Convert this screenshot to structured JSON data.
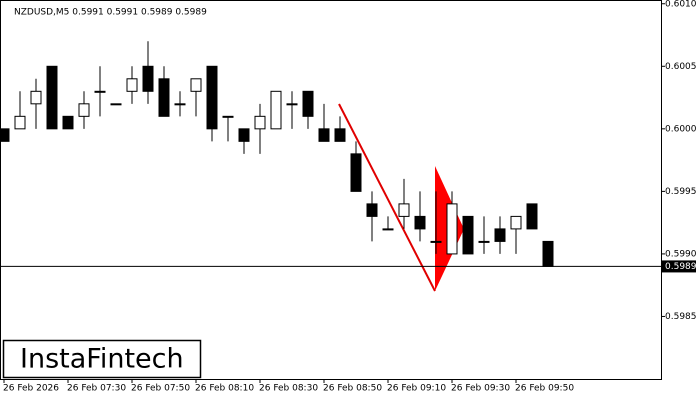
{
  "chart_data": {
    "type": "candlestick",
    "title": "NZDUSD,M5  0.5991 0.5991 0.5989 0.5989",
    "logo": "InstaFintech",
    "categories": [
      "26 Feb 2026",
      null,
      null,
      null,
      "26 Feb 07:30",
      null,
      null,
      null,
      "26 Feb 07:50",
      null,
      null,
      null,
      "26 Feb 08:10",
      null,
      null,
      null,
      "26 Feb 08:30",
      null,
      null,
      null,
      "26 Feb 08:50",
      null,
      null,
      null,
      "26 Feb 09:10",
      null,
      null,
      null,
      "26 Feb 09:30",
      null,
      null,
      null,
      "26 Feb 09:50",
      null,
      null
    ],
    "open": [
      0.6,
      0.6,
      0.6002,
      0.6005,
      0.6001,
      0.6001,
      0.6003,
      0.6002,
      0.6003,
      0.6005,
      0.6004,
      0.6002,
      0.6003,
      0.6005,
      0.6001,
      0.6,
      0.6,
      0.6,
      0.6002,
      0.6003,
      0.6,
      0.6,
      0.5998,
      0.5994,
      0.5992,
      0.5993,
      0.5993,
      0.5991,
      0.599,
      0.5993,
      0.5991,
      0.5992,
      0.5992,
      0.5994,
      0.5991
    ],
    "high": [
      0.6,
      0.6003,
      0.6004,
      0.6005,
      0.6001,
      0.6003,
      0.6005,
      0.6002,
      0.6005,
      0.6007,
      0.6005,
      0.6003,
      0.6004,
      0.6005,
      0.6001,
      0.6,
      0.6002,
      0.6003,
      0.6003,
      0.6003,
      0.6002,
      0.6001,
      0.5999,
      0.5995,
      0.5993,
      0.5996,
      0.5995,
      0.5995,
      0.5995,
      0.5993,
      0.5993,
      0.5993,
      0.5993,
      0.5994,
      0.5991
    ],
    "low": [
      0.5999,
      0.6,
      0.6,
      0.6,
      0.6,
      0.6,
      0.6001,
      0.6002,
      0.6002,
      0.6002,
      0.6001,
      0.6001,
      0.6001,
      0.5999,
      0.5999,
      0.5998,
      0.5998,
      0.6,
      0.6,
      0.6,
      0.5999,
      0.5999,
      0.5995,
      0.5991,
      0.5992,
      0.5992,
      0.5991,
      0.599,
      0.599,
      0.599,
      0.599,
      0.599,
      0.599,
      0.5992,
      0.5989
    ],
    "close": [
      0.5999,
      0.6001,
      0.6003,
      0.6,
      0.6,
      0.6002,
      0.6003,
      0.6002,
      0.6004,
      0.6003,
      0.6001,
      0.6002,
      0.6004,
      0.6,
      0.6001,
      0.5999,
      0.6001,
      0.6003,
      0.6002,
      0.6001,
      0.5999,
      0.5999,
      0.5995,
      0.5993,
      0.5992,
      0.5994,
      0.5992,
      0.5991,
      0.5994,
      0.599,
      0.5991,
      0.5991,
      0.5993,
      0.5992,
      0.5989
    ],
    "last_price": 0.5989,
    "ylim": [
      0.598,
      0.60103
    ],
    "yticks": [
      {
        "value": 0.601,
        "label": "0.6010"
      },
      0.6005,
      {
        "value": 0.6,
        "label": "0.6000"
      },
      0.5995,
      {
        "value": 0.599,
        "label": "0.5990"
      },
      0.5985
    ]
  }
}
